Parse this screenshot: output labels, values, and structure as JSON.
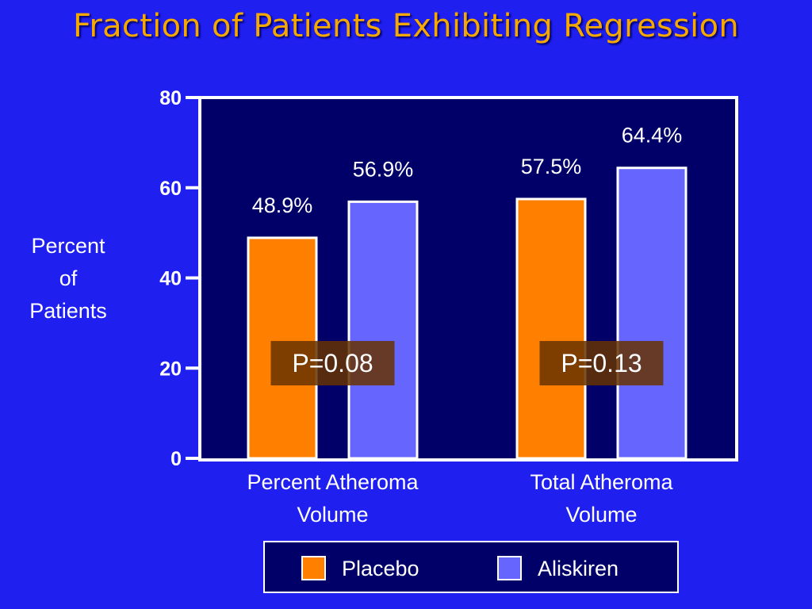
{
  "title": "Fraction of Patients  Exhibiting Regression",
  "colors": {
    "background": "#1f1ff0",
    "plot_area": "#000068",
    "placebo": "#ff8000",
    "aliskiren": "#6666ff",
    "title": "#f5a800",
    "p_box": "#663300"
  },
  "chart_data": {
    "type": "bar",
    "title": "Fraction of Patients  Exhibiting Regression",
    "ylabel": "Percent of Patients",
    "ylabel_lines": [
      "Percent",
      "of",
      "Patients"
    ],
    "xlabel": "",
    "ylim": [
      0,
      80
    ],
    "yticks": [
      0,
      20,
      40,
      60,
      80
    ],
    "categories": [
      {
        "label_lines": [
          "Percent Atheroma",
          "Volume"
        ],
        "p_value": "P=0.08"
      },
      {
        "label_lines": [
          "Total Atheroma",
          "Volume"
        ],
        "p_value": "P=0.13"
      }
    ],
    "series": [
      {
        "name": "Placebo",
        "values": [
          48.9,
          57.5
        ],
        "labels": [
          "48.9%",
          "57.5%"
        ],
        "color": "#ff8000"
      },
      {
        "name": "Aliskiren",
        "values": [
          56.9,
          64.4
        ],
        "labels": [
          "56.9%",
          "64.4%"
        ],
        "color": "#6666ff"
      }
    ],
    "legend": "bottom",
    "grid": false
  }
}
